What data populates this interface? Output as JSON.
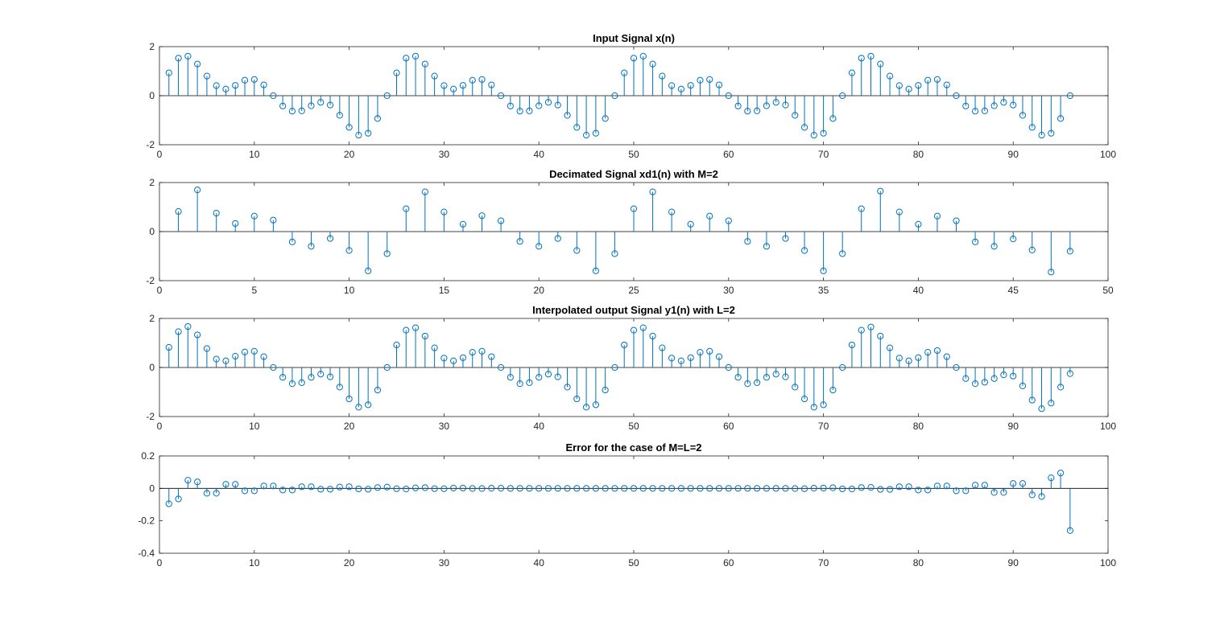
{
  "colors": {
    "stem": "#0072bd",
    "axis": "#262626",
    "background": "#ffffff"
  },
  "chart_data": [
    {
      "type": "stem",
      "title": "Input Signal x(n)",
      "xlabel": "",
      "ylabel": "",
      "xlim": [
        0,
        100
      ],
      "ylim": [
        -2,
        2
      ],
      "xticks": [
        0,
        10,
        20,
        30,
        40,
        50,
        60,
        70,
        80,
        90,
        100
      ],
      "yticks": [
        -2,
        0,
        2
      ],
      "grid": false,
      "series": [
        {
          "x": [
            1,
            2,
            3,
            4,
            5,
            6,
            7,
            8,
            9,
            10,
            11,
            12,
            13,
            14,
            15,
            16,
            17,
            18,
            19,
            20,
            21,
            22,
            23,
            24,
            25,
            26,
            27,
            28,
            29,
            30,
            31,
            32,
            33,
            34,
            35,
            36,
            37,
            38,
            39,
            40,
            41,
            42,
            43,
            44,
            45,
            46,
            47,
            48,
            49,
            50,
            51,
            52,
            53,
            54,
            55,
            56,
            57,
            58,
            59,
            60,
            61,
            62,
            63,
            64,
            65,
            66,
            67,
            68,
            69,
            70,
            71,
            72,
            73,
            74,
            75,
            76,
            77,
            78,
            79,
            80,
            81,
            82,
            83,
            84,
            85,
            86,
            87,
            88,
            89,
            90,
            91,
            92,
            93,
            94,
            95,
            96
          ],
          "values": [
            0.93,
            1.53,
            1.61,
            1.29,
            0.8,
            0.41,
            0.27,
            0.42,
            0.63,
            0.66,
            0.44,
            0,
            -0.42,
            -0.63,
            -0.62,
            -0.41,
            -0.27,
            -0.38,
            -0.8,
            -1.29,
            -1.61,
            -1.53,
            -0.93,
            0,
            0.93,
            1.53,
            1.61,
            1.29,
            0.8,
            0.41,
            0.27,
            0.42,
            0.63,
            0.66,
            0.44,
            0,
            -0.42,
            -0.63,
            -0.62,
            -0.41,
            -0.27,
            -0.38,
            -0.8,
            -1.29,
            -1.61,
            -1.53,
            -0.93,
            0,
            0.93,
            1.53,
            1.61,
            1.29,
            0.8,
            0.41,
            0.27,
            0.42,
            0.63,
            0.66,
            0.44,
            0,
            -0.42,
            -0.63,
            -0.62,
            -0.41,
            -0.27,
            -0.38,
            -0.8,
            -1.29,
            -1.61,
            -1.53,
            -0.93,
            0,
            0.93,
            1.53,
            1.61,
            1.29,
            0.8,
            0.41,
            0.27,
            0.42,
            0.63,
            0.66,
            0.44,
            0,
            -0.42,
            -0.63,
            -0.62,
            -0.41,
            -0.27,
            -0.38,
            -0.8,
            -1.29,
            -1.61,
            -1.53,
            -0.93,
            0
          ]
        }
      ]
    },
    {
      "type": "stem",
      "title": "Decimated Signal xd1(n) with M=2",
      "xlabel": "",
      "ylabel": "",
      "xlim": [
        0,
        50
      ],
      "ylim": [
        -2,
        2
      ],
      "xticks": [
        0,
        5,
        10,
        15,
        20,
        25,
        30,
        35,
        40,
        45,
        50
      ],
      "yticks": [
        -2,
        0,
        2
      ],
      "grid": false,
      "series": [
        {
          "x": [
            1,
            2,
            3,
            4,
            5,
            6,
            7,
            8,
            9,
            10,
            11,
            12,
            13,
            14,
            15,
            16,
            17,
            18,
            19,
            20,
            21,
            22,
            23,
            24,
            25,
            26,
            27,
            28,
            29,
            30,
            31,
            32,
            33,
            34,
            35,
            36,
            37,
            38,
            39,
            40,
            41,
            42,
            43,
            44,
            45,
            46,
            47,
            48
          ],
          "values": [
            0.82,
            1.7,
            0.75,
            0.33,
            0.63,
            0.47,
            -0.42,
            -0.6,
            -0.28,
            -0.77,
            -1.6,
            -0.9,
            0.93,
            1.62,
            0.8,
            0.3,
            0.65,
            0.44,
            -0.4,
            -0.6,
            -0.28,
            -0.77,
            -1.6,
            -0.9,
            0.93,
            1.62,
            0.8,
            0.3,
            0.63,
            0.44,
            -0.4,
            -0.6,
            -0.28,
            -0.77,
            -1.6,
            -0.9,
            0.93,
            1.65,
            0.8,
            0.3,
            0.63,
            0.44,
            -0.42,
            -0.6,
            -0.3,
            -0.75,
            -1.65,
            -0.8
          ]
        }
      ]
    },
    {
      "type": "stem",
      "title": "Interpolated output Signal y1(n) with L=2",
      "xlabel": "",
      "ylabel": "",
      "xlim": [
        0,
        100
      ],
      "ylim": [
        -2,
        2
      ],
      "xticks": [
        0,
        10,
        20,
        30,
        40,
        50,
        60,
        70,
        80,
        90,
        100
      ],
      "yticks": [
        -2,
        0,
        2
      ],
      "grid": false,
      "series": [
        {
          "x": [
            1,
            2,
            3,
            4,
            5,
            6,
            7,
            8,
            9,
            10,
            11,
            12,
            13,
            14,
            15,
            16,
            17,
            18,
            19,
            20,
            21,
            22,
            23,
            24,
            25,
            26,
            27,
            28,
            29,
            30,
            31,
            32,
            33,
            34,
            35,
            36,
            37,
            38,
            39,
            40,
            41,
            42,
            43,
            44,
            45,
            46,
            47,
            48,
            49,
            50,
            51,
            52,
            53,
            54,
            55,
            56,
            57,
            58,
            59,
            60,
            61,
            62,
            63,
            64,
            65,
            66,
            67,
            68,
            69,
            70,
            71,
            72,
            73,
            74,
            75,
            76,
            77,
            78,
            79,
            80,
            81,
            82,
            83,
            84,
            85,
            86,
            87,
            88,
            89,
            90,
            91,
            92,
            93,
            94,
            95,
            96
          ],
          "values": [
            0.82,
            1.46,
            1.67,
            1.33,
            0.77,
            0.34,
            0.27,
            0.46,
            0.63,
            0.66,
            0.44,
            0,
            -0.4,
            -0.66,
            -0.62,
            -0.4,
            -0.27,
            -0.38,
            -0.8,
            -1.28,
            -1.62,
            -1.52,
            -0.92,
            0,
            0.92,
            1.52,
            1.62,
            1.28,
            0.8,
            0.38,
            0.27,
            0.4,
            0.62,
            0.66,
            0.44,
            0,
            -0.4,
            -0.66,
            -0.62,
            -0.4,
            -0.27,
            -0.38,
            -0.8,
            -1.28,
            -1.62,
            -1.52,
            -0.92,
            0,
            0.92,
            1.52,
            1.62,
            1.28,
            0.8,
            0.38,
            0.27,
            0.4,
            0.62,
            0.66,
            0.44,
            0,
            -0.4,
            -0.66,
            -0.62,
            -0.4,
            -0.27,
            -0.38,
            -0.8,
            -1.28,
            -1.62,
            -1.52,
            -0.92,
            0,
            0.92,
            1.52,
            1.65,
            1.28,
            0.8,
            0.38,
            0.27,
            0.4,
            0.62,
            0.69,
            0.44,
            0,
            -0.45,
            -0.66,
            -0.6,
            -0.45,
            -0.3,
            -0.35,
            -0.75,
            -1.33,
            -1.68,
            -1.45,
            -0.8,
            -0.25
          ]
        }
      ]
    },
    {
      "type": "stem",
      "title": "Error for the case of M=L=2",
      "xlabel": "",
      "ylabel": "",
      "xlim": [
        0,
        100
      ],
      "ylim": [
        -0.4,
        0.2
      ],
      "xticks": [
        0,
        10,
        20,
        30,
        40,
        50,
        60,
        70,
        80,
        90,
        100
      ],
      "yticks": [
        -0.4,
        -0.2,
        0,
        0.2
      ],
      "grid": false,
      "series": [
        {
          "x": [
            1,
            2,
            3,
            4,
            5,
            6,
            7,
            8,
            9,
            10,
            11,
            12,
            13,
            14,
            15,
            16,
            17,
            18,
            19,
            20,
            21,
            22,
            23,
            24,
            25,
            26,
            27,
            28,
            29,
            30,
            31,
            32,
            33,
            34,
            35,
            36,
            37,
            38,
            39,
            40,
            41,
            42,
            43,
            44,
            45,
            46,
            47,
            48,
            49,
            50,
            51,
            52,
            53,
            54,
            55,
            56,
            57,
            58,
            59,
            60,
            61,
            62,
            63,
            64,
            65,
            66,
            67,
            68,
            69,
            70,
            71,
            72,
            73,
            74,
            75,
            76,
            77,
            78,
            79,
            80,
            81,
            82,
            83,
            84,
            85,
            86,
            87,
            88,
            89,
            90,
            91,
            92,
            93,
            94,
            95,
            96
          ],
          "values": [
            -0.095,
            -0.065,
            0.05,
            0.04,
            -0.03,
            -0.03,
            0.025,
            0.025,
            -0.015,
            -0.015,
            0.015,
            0.015,
            -0.01,
            -0.01,
            0.01,
            0.01,
            -0.005,
            -0.005,
            0.008,
            0.01,
            -0.003,
            -0.005,
            0.005,
            0.008,
            -0.002,
            -0.004,
            0.003,
            0.004,
            -0.002,
            -0.002,
            0.002,
            0.002,
            -0.001,
            -0.001,
            0.001,
            0.001,
            0,
            0,
            0,
            0,
            0,
            0,
            0,
            0,
            0,
            0,
            0,
            0,
            0,
            0,
            0,
            0,
            0,
            0,
            0,
            0,
            0,
            0,
            0,
            0,
            0,
            0,
            0,
            0,
            0,
            0,
            -0.001,
            -0.002,
            0.001,
            0.002,
            0.004,
            -0.003,
            -0.004,
            0.005,
            0.006,
            -0.006,
            -0.006,
            0.01,
            0.01,
            -0.01,
            -0.01,
            0.015,
            0.015,
            -0.015,
            -0.015,
            0.02,
            0.02,
            -0.025,
            -0.025,
            0.03,
            0.03,
            -0.04,
            -0.05,
            0.065,
            0.095,
            -0.26
          ]
        }
      ]
    }
  ]
}
